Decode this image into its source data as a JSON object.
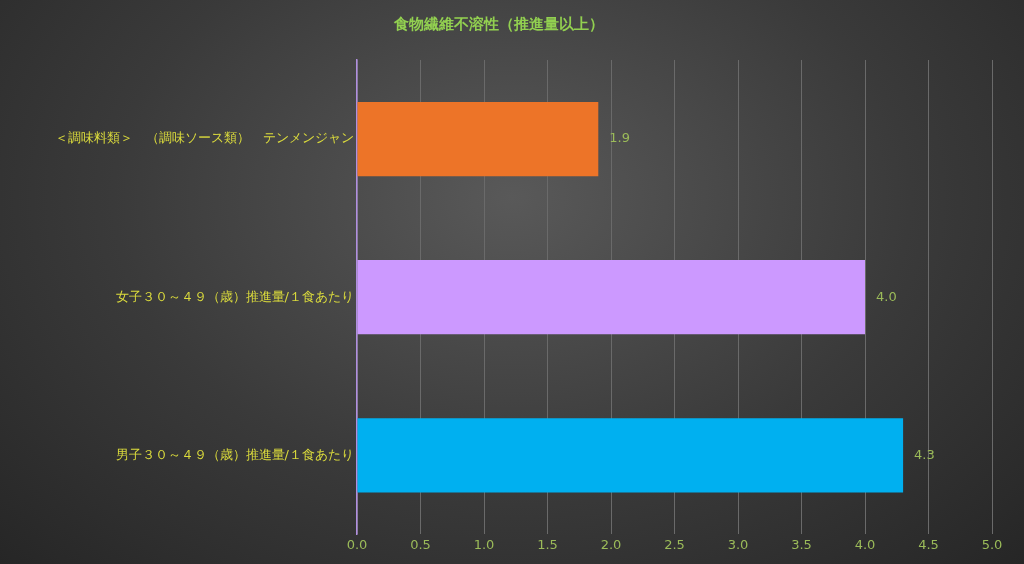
{
  "chart_data": {
    "type": "bar",
    "orientation": "horizontal",
    "title": "食物繊維不溶性（推進量以上）",
    "categories": [
      "＜調味料類＞　（調味ソース類）　テンメンジャン",
      "女子３０～４９（歳）推進量/１食あたり",
      "男子３０～４９（歳）推進量/１食あたり"
    ],
    "values": [
      1.9,
      4.0,
      4.3
    ],
    "colors": [
      "#ed7428",
      "#cc99ff",
      "#00b0f0"
    ],
    "xlim": [
      0,
      5
    ],
    "xticks": [
      {
        "value": 0,
        "label": "0.0"
      },
      {
        "value": 0.5,
        "label": "0.5"
      },
      {
        "value": 1,
        "label": "1.0"
      },
      {
        "value": 1.5,
        "label": "1.5"
      },
      {
        "value": 2,
        "label": "2.0"
      },
      {
        "value": 2.5,
        "label": "2.5"
      },
      {
        "value": 3,
        "label": "3.0"
      },
      {
        "value": 3.5,
        "label": "3.5"
      },
      {
        "value": 4,
        "label": "4.0"
      },
      {
        "value": 4.5,
        "label": "4.5"
      },
      {
        "value": 5,
        "label": "5.0"
      }
    ],
    "value_labels": [
      "1.9",
      "4.0",
      "4.3"
    ],
    "grid": "x"
  }
}
